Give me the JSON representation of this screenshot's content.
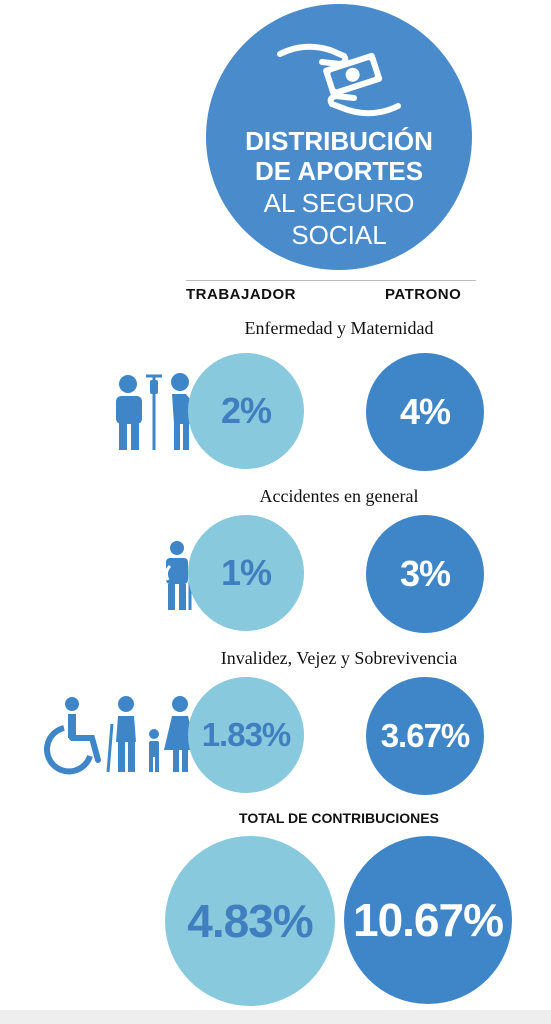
{
  "header": {
    "title_lines": [
      "DISTRIBUCIÓN",
      "DE APORTES",
      "AL SEGURO",
      "SOCIAL"
    ],
    "icon": "money-hands-icon"
  },
  "columns": {
    "worker": "TRABAJADOR",
    "employer": "PATRONO"
  },
  "sections": [
    {
      "title": "Enfermedad y Maternidad",
      "worker": "2%",
      "employer": "4%",
      "icon": "patient-pregnant-icon"
    },
    {
      "title": "Accidentes en general",
      "worker": "1%",
      "employer": "3%",
      "icon": "injured-person-icon"
    },
    {
      "title": "Invalidez, Vejez y Sobrevivencia",
      "worker": "1.83%",
      "employer": "3.67%",
      "icon": "wheelchair-elderly-family-icon"
    }
  ],
  "totals": {
    "title": "TOTAL DE CONTRIBUCIONES",
    "worker": "4.83%",
    "employer": "10.67%"
  },
  "colors": {
    "dark_blue": "#3f86c9",
    "light_blue": "#88c9dd",
    "hero_blue": "#4a8bcb"
  }
}
